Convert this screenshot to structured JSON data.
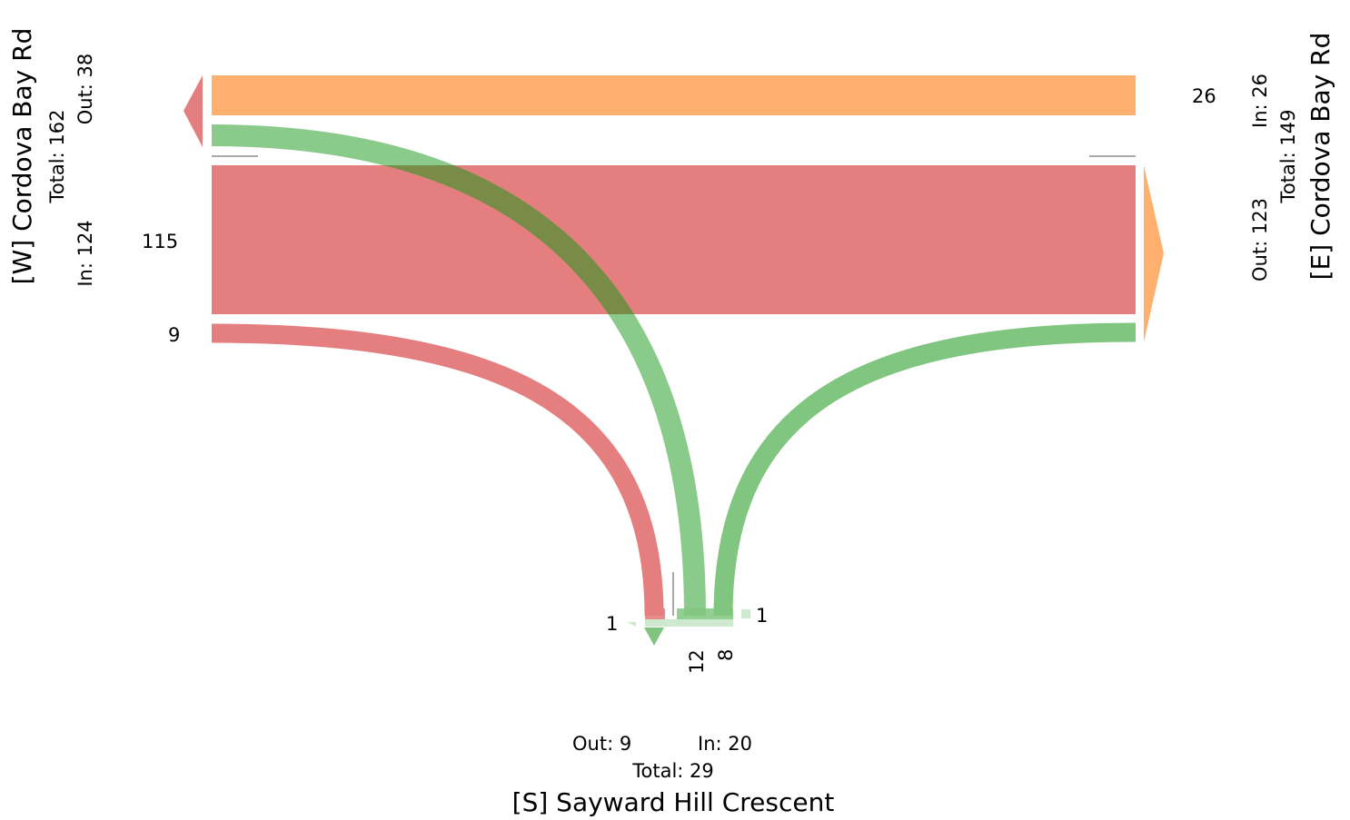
{
  "legs": {
    "west": {
      "name": "[W] Cordova Bay Rd",
      "total": "Total: 162",
      "out": "Out: 38",
      "in": "In: 124"
    },
    "east": {
      "name": "[E] Cordova Bay Rd",
      "total": "Total: 149",
      "out": "Out: 123",
      "in": "In: 26"
    },
    "south": {
      "name": "[S] Sayward Hill Crescent",
      "total": "Total: 29",
      "out": "Out: 9",
      "in": "In: 20"
    }
  },
  "flows": [
    {
      "from": "E",
      "to": "W",
      "count": "26",
      "color": "#ffb06e"
    },
    {
      "from": "W",
      "to": "E",
      "count": "115",
      "color": "#e57e7e"
    },
    {
      "from": "W",
      "to": "S",
      "count": "9",
      "color": "#e57e7e"
    },
    {
      "from": "S",
      "to": "W",
      "count": "12",
      "color": "#80c680"
    },
    {
      "from": "S",
      "to": "E",
      "count": "8",
      "color": "#80c680"
    },
    {
      "from": "S",
      "to": "S",
      "count": "1",
      "color": "#80c680"
    }
  ],
  "uturn_in_count": "1",
  "colors": {
    "west_outbound": "#ffb06e",
    "west_origin": "#e57e7e",
    "south_origin": "#80c680",
    "dark_overlap": "#788c48"
  }
}
